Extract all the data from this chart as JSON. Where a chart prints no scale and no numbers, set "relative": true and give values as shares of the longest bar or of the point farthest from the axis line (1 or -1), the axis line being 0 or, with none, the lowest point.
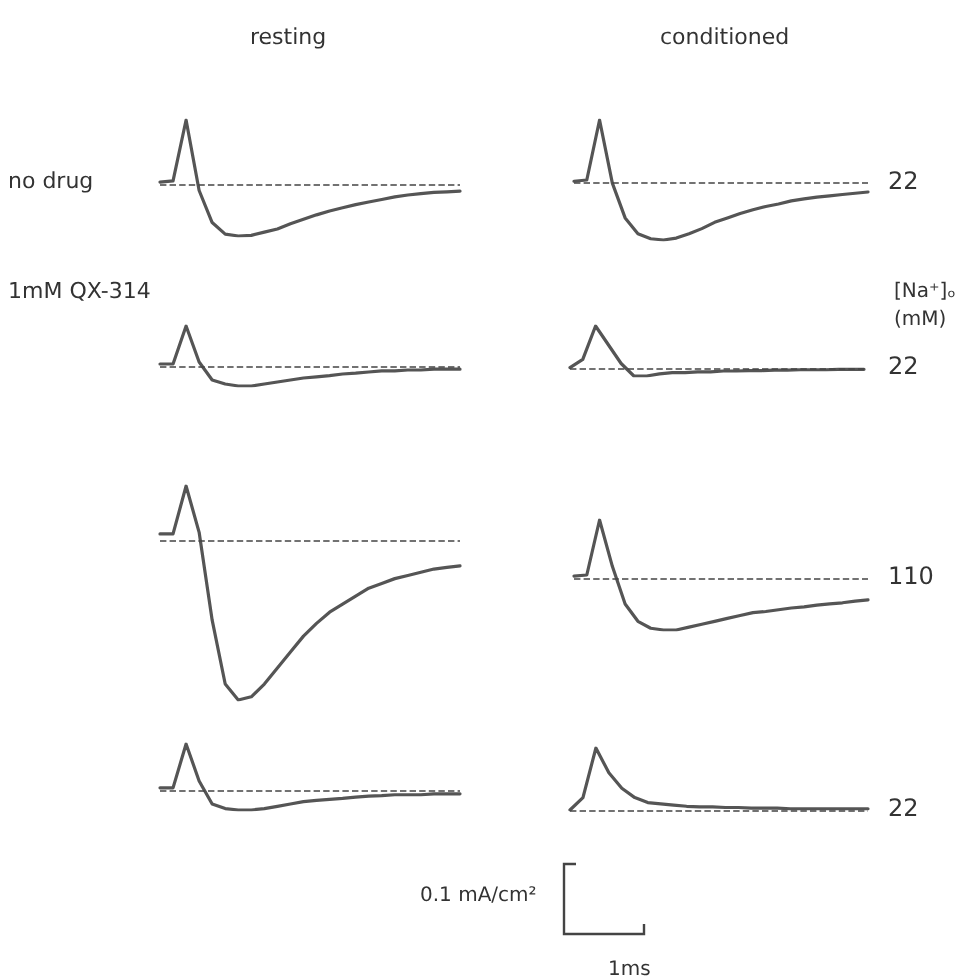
{
  "chart_data": [
    {
      "type": "line",
      "relative": true,
      "title": "resting",
      "ylabel": "no drug",
      "marker": "none",
      "line_style": "solid",
      "categories": [
        null,
        null,
        null,
        null,
        null,
        null,
        null,
        null,
        null,
        null,
        null,
        null,
        null,
        null,
        null,
        null,
        null,
        null,
        null,
        null,
        null,
        null,
        null,
        null
      ],
      "series": [
        {
          "color": "#555555",
          "values": [
            0.03,
            0.05,
            1.0,
            -0.1,
            -0.6,
            -0.78,
            -0.81,
            -0.8,
            -0.75,
            -0.7,
            -0.62,
            -0.55,
            -0.48,
            -0.42,
            -0.37,
            -0.32,
            -0.28,
            -0.24,
            -0.2,
            -0.17,
            -0.15,
            -0.13,
            -0.12,
            -0.11
          ]
        }
      ],
      "ref_lines": [
        {
          "axis": "y",
          "value": 0,
          "line_style": "dashed"
        }
      ]
    },
    {
      "type": "line",
      "relative": true,
      "title": "conditioned",
      "y2label": "22",
      "annotations": [
        "[Na⁺]ₒ",
        "(mM)"
      ],
      "marker": "none",
      "line_style": "solid",
      "categories": [
        null,
        null,
        null,
        null,
        null,
        null,
        null,
        null,
        null,
        null,
        null,
        null,
        null,
        null,
        null,
        null,
        null,
        null,
        null,
        null,
        null,
        null,
        null,
        null
      ],
      "series": [
        {
          "color": "#555555",
          "values": [
            0.03,
            0.05,
            1.0,
            0,
            -0.55,
            -0.8,
            -0.88,
            -0.9,
            -0.87,
            -0.8,
            -0.72,
            -0.62,
            -0.55,
            -0.48,
            -0.42,
            -0.37,
            -0.33,
            -0.28,
            -0.25,
            -0.22,
            -0.2,
            -0.18,
            -0.16,
            -0.14
          ]
        }
      ],
      "ref_lines": [
        {
          "axis": "y",
          "value": 0,
          "line_style": "dashed"
        }
      ]
    },
    {
      "type": "line",
      "relative": true,
      "ylabel": "1mM QX-314",
      "marker": "none",
      "line_style": "solid",
      "categories": [
        null,
        null,
        null,
        null,
        null,
        null,
        null,
        null,
        null,
        null,
        null,
        null,
        null,
        null,
        null,
        null,
        null,
        null,
        null,
        null,
        null,
        null,
        null,
        null
      ],
      "series": [
        {
          "color": "#555555",
          "values": [
            0.05,
            0.05,
            1.0,
            0.1,
            -0.35,
            -0.45,
            -0.5,
            -0.5,
            -0.45,
            -0.4,
            -0.35,
            -0.3,
            -0.27,
            -0.24,
            -0.2,
            -0.18,
            -0.15,
            -0.12,
            -0.12,
            -0.1,
            -0.1,
            -0.08,
            -0.08,
            -0.08
          ]
        }
      ],
      "ref_lines": [
        {
          "axis": "y",
          "value": 0,
          "line_style": "dashed"
        }
      ]
    },
    {
      "type": "line",
      "relative": true,
      "y2label": "22",
      "marker": "none",
      "line_style": "solid",
      "categories": [
        null,
        null,
        null,
        null,
        null,
        null,
        null,
        null,
        null,
        null,
        null,
        null,
        null,
        null,
        null,
        null,
        null,
        null,
        null,
        null,
        null,
        null,
        null,
        null
      ],
      "series": [
        {
          "color": "#555555",
          "values": [
            0,
            0.2,
            1.0,
            0.55,
            0.1,
            -0.2,
            -0.2,
            -0.15,
            -0.12,
            -0.12,
            -0.1,
            -0.1,
            -0.08,
            -0.08,
            -0.07,
            -0.07,
            -0.06,
            -0.06,
            -0.05,
            -0.05,
            -0.05,
            -0.04,
            -0.04,
            -0.04
          ]
        }
      ],
      "ref_lines": [
        {
          "axis": "y",
          "value": 0,
          "line_style": "dashed"
        }
      ]
    },
    {
      "type": "line",
      "relative": true,
      "marker": "none",
      "line_style": "solid",
      "categories": [
        null,
        null,
        null,
        null,
        null,
        null,
        null,
        null,
        null,
        null,
        null,
        null,
        null,
        null,
        null,
        null,
        null,
        null,
        null,
        null,
        null,
        null,
        null,
        null
      ],
      "series": [
        {
          "color": "#555555",
          "values": [
            0.04,
            0.04,
            0.34,
            0.05,
            -0.5,
            -0.9,
            -1.0,
            -0.98,
            -0.9,
            -0.8,
            -0.7,
            -0.6,
            -0.52,
            -0.45,
            -0.4,
            -0.35,
            -0.3,
            -0.27,
            -0.24,
            -0.22,
            -0.2,
            -0.18,
            -0.17,
            -0.16
          ]
        }
      ],
      "ref_lines": [
        {
          "axis": "y",
          "value": 0,
          "line_style": "dashed"
        }
      ]
    },
    {
      "type": "line",
      "relative": true,
      "y2label": "110",
      "marker": "none",
      "line_style": "solid",
      "categories": [
        null,
        null,
        null,
        null,
        null,
        null,
        null,
        null,
        null,
        null,
        null,
        null,
        null,
        null,
        null,
        null,
        null,
        null,
        null,
        null,
        null,
        null,
        null,
        null
      ],
      "series": [
        {
          "color": "#555555",
          "values": [
            0.03,
            0.05,
            1.0,
            0.2,
            -0.45,
            -0.75,
            -0.87,
            -0.9,
            -0.9,
            -0.85,
            -0.8,
            -0.75,
            -0.7,
            -0.65,
            -0.6,
            -0.58,
            -0.55,
            -0.52,
            -0.5,
            -0.47,
            -0.45,
            -0.43,
            -0.4,
            -0.38
          ]
        }
      ],
      "ref_lines": [
        {
          "axis": "y",
          "value": 0,
          "line_style": "dashed"
        }
      ]
    },
    {
      "type": "line",
      "relative": true,
      "marker": "none",
      "line_style": "solid",
      "categories": [
        null,
        null,
        null,
        null,
        null,
        null,
        null,
        null,
        null,
        null,
        null,
        null,
        null,
        null,
        null,
        null,
        null,
        null,
        null,
        null,
        null,
        null,
        null,
        null
      ],
      "series": [
        {
          "color": "#555555",
          "values": [
            0.05,
            0.05,
            1.0,
            0.2,
            -0.3,
            -0.4,
            -0.43,
            -0.43,
            -0.4,
            -0.35,
            -0.3,
            -0.25,
            -0.22,
            -0.2,
            -0.18,
            -0.15,
            -0.13,
            -0.12,
            -0.1,
            -0.1,
            -0.1,
            -0.08,
            -0.08,
            -0.08
          ]
        }
      ],
      "ref_lines": [
        {
          "axis": "y",
          "value": 0,
          "line_style": "dashed"
        }
      ]
    },
    {
      "type": "line",
      "relative": true,
      "y2label": "22",
      "annotations": [
        "0.1 mA/cm²",
        "1ms"
      ],
      "marker": "none",
      "line_style": "solid",
      "categories": [
        null,
        null,
        null,
        null,
        null,
        null,
        null,
        null,
        null,
        null,
        null,
        null,
        null,
        null,
        null,
        null,
        null,
        null,
        null,
        null,
        null,
        null,
        null,
        null
      ],
      "series": [
        {
          "color": "#555555",
          "values": [
            0,
            0.2,
            1.0,
            0.6,
            0.35,
            0.2,
            0.12,
            0.1,
            0.08,
            0.06,
            0.05,
            0.05,
            0.04,
            0.04,
            0.03,
            0.03,
            0.03,
            0.02,
            0.02,
            0.02,
            0.02,
            0.02,
            0.02,
            0.02
          ]
        }
      ],
      "ref_lines": [
        {
          "axis": "y",
          "value": 0,
          "line_style": "dashed"
        }
      ]
    }
  ]
}
